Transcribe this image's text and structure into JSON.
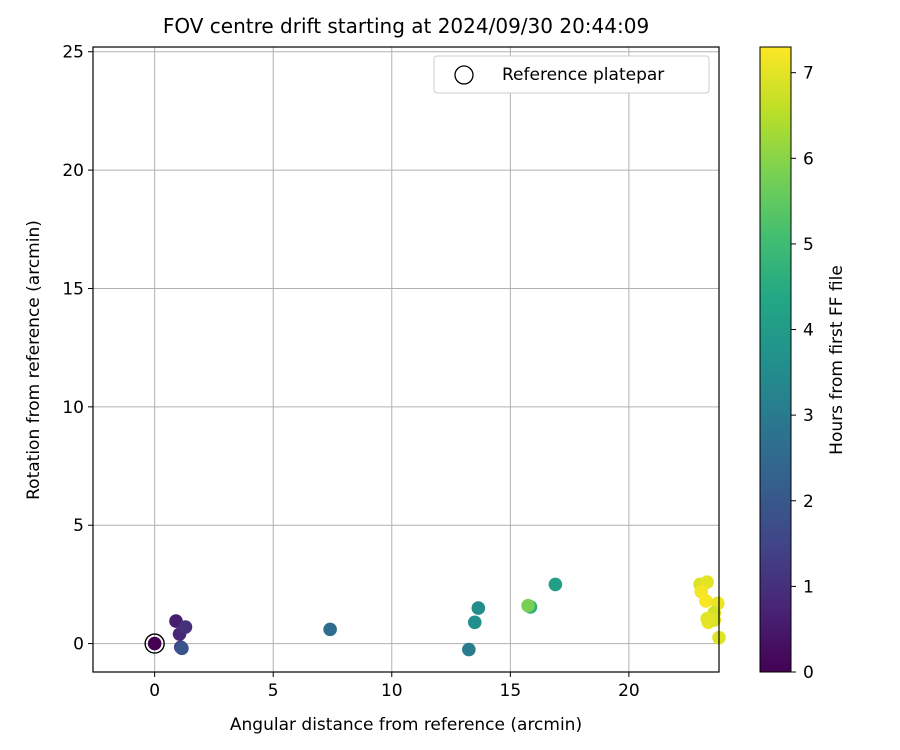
{
  "chart_data": {
    "type": "scatter",
    "title": "FOV centre drift starting at 2024/09/30 20:44:09",
    "xlabel": "Angular distance from reference (arcmin)",
    "ylabel": "Rotation from reference (arcmin)",
    "xlim": [
      -2.6,
      23.8
    ],
    "ylim": [
      -1.2,
      25.2
    ],
    "xticks": [
      0,
      5,
      10,
      15,
      20
    ],
    "yticks": [
      0,
      5,
      10,
      15,
      20,
      25
    ],
    "grid": true,
    "legend": {
      "placement": "top-right",
      "entries": [
        "Reference platepar"
      ]
    },
    "reference_point": {
      "x": 0,
      "y": 0,
      "label": "Reference platepar"
    },
    "colorbar": {
      "label": "Hours from first FF file",
      "colormap": "viridis",
      "range": [
        0,
        7.3
      ],
      "ticks": [
        0,
        1,
        2,
        3,
        4,
        5,
        6,
        7
      ]
    },
    "points": [
      {
        "x": 0.0,
        "y": 0.0,
        "hours": 0.0
      },
      {
        "x": 0.9,
        "y": 0.95,
        "hours": 0.6
      },
      {
        "x": 1.05,
        "y": 0.4,
        "hours": 0.8
      },
      {
        "x": 1.3,
        "y": 0.7,
        "hours": 1.0
      },
      {
        "x": 1.1,
        "y": -0.15,
        "hours": 1.5
      },
      {
        "x": 1.15,
        "y": -0.2,
        "hours": 1.9
      },
      {
        "x": 7.4,
        "y": 0.6,
        "hours": 2.6
      },
      {
        "x": 13.25,
        "y": -0.25,
        "hours": 3.0
      },
      {
        "x": 13.5,
        "y": 0.9,
        "hours": 3.6
      },
      {
        "x": 13.65,
        "y": 1.5,
        "hours": 3.5
      },
      {
        "x": 15.85,
        "y": 1.55,
        "hours": 4.6
      },
      {
        "x": 16.9,
        "y": 2.5,
        "hours": 4.1
      },
      {
        "x": 15.75,
        "y": 1.6,
        "hours": 5.8
      },
      {
        "x": 23.0,
        "y": 2.5,
        "hours": 6.9
      },
      {
        "x": 23.3,
        "y": 2.6,
        "hours": 7.0
      },
      {
        "x": 23.05,
        "y": 2.2,
        "hours": 7.2
      },
      {
        "x": 23.25,
        "y": 1.8,
        "hours": 7.25
      },
      {
        "x": 23.75,
        "y": 1.7,
        "hours": 7.1
      },
      {
        "x": 23.6,
        "y": 1.3,
        "hours": 6.8
      },
      {
        "x": 23.35,
        "y": 0.9,
        "hours": 7.1
      },
      {
        "x": 23.6,
        "y": 1.0,
        "hours": 6.9
      },
      {
        "x": 23.3,
        "y": 1.05,
        "hours": 7.0
      },
      {
        "x": 23.8,
        "y": 0.25,
        "hours": 6.95
      }
    ]
  }
}
